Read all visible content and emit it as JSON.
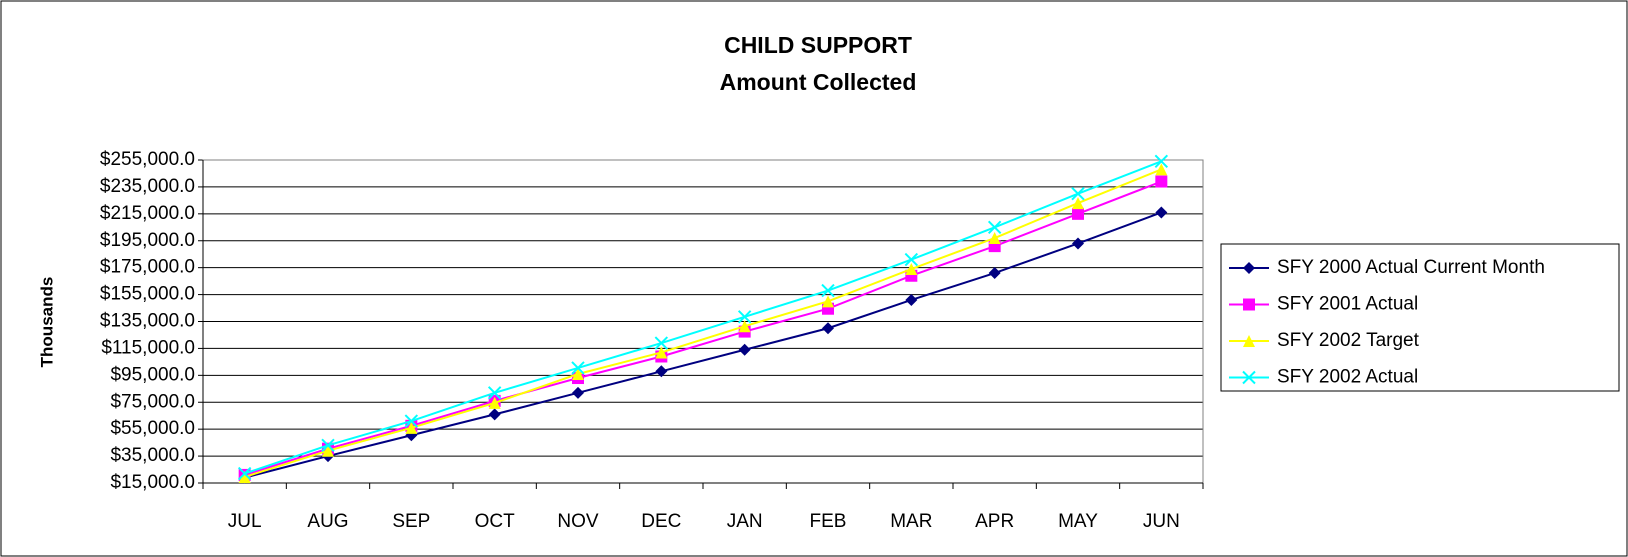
{
  "chart_data": {
    "type": "line",
    "title": "CHILD SUPPORT",
    "subtitle": "Amount Collected",
    "y_label": "Thousands",
    "categories": [
      "JUL",
      "AUG",
      "SEP",
      "OCT",
      "NOV",
      "DEC",
      "JAN",
      "FEB",
      "MAR",
      "APR",
      "MAY",
      "JUN"
    ],
    "series": [
      {
        "name": "SFY 2000 Actual Current Month",
        "color": "#000080",
        "marker": "diamond",
        "values": [
          19000,
          35000,
          50500,
          66000,
          82000,
          98000,
          114000,
          130000,
          151000,
          171000,
          193000,
          216000
        ]
      },
      {
        "name": "SFY 2001 Actual",
        "color": "#ff00ff",
        "marker": "square",
        "values": [
          21000,
          40500,
          57500,
          76000,
          93000,
          109000,
          127500,
          144500,
          169000,
          191000,
          215000,
          239000
        ]
      },
      {
        "name": "SFY 2002 Target",
        "color": "#ffff00",
        "marker": "triangle",
        "values": [
          19500,
          39000,
          56000,
          74500,
          96000,
          112000,
          131500,
          150000,
          174000,
          197000,
          223000,
          248000
        ]
      },
      {
        "name": "SFY 2002 Actual",
        "color": "#00ffff",
        "marker": "x",
        "values": [
          22000,
          43000,
          61000,
          82000,
          100500,
          119000,
          138500,
          158000,
          181000,
          205000,
          230000,
          254000
        ]
      }
    ],
    "ylim": [
      15000,
      255000
    ],
    "yticks": [
      {
        "value": 15000,
        "label": "$15,000.0"
      },
      {
        "value": 35000,
        "label": "$35,000.0"
      },
      {
        "value": 55000,
        "label": "$55,000.0"
      },
      {
        "value": 75000,
        "label": "$75,000.0"
      },
      {
        "value": 95000,
        "label": "$95,000.0"
      },
      {
        "value": 115000,
        "label": "$115,000.0"
      },
      {
        "value": 135000,
        "label": "$135,000.0"
      },
      {
        "value": 155000,
        "label": "$155,000.0"
      },
      {
        "value": 175000,
        "label": "$175,000.0"
      },
      {
        "value": 195000,
        "label": "$195,000.0"
      },
      {
        "value": 215000,
        "label": "$215,000.0"
      },
      {
        "value": 235000,
        "label": "$235,000.0"
      },
      {
        "value": 255000,
        "label": "$255,000.0"
      }
    ],
    "grid": true,
    "legend": "right"
  }
}
